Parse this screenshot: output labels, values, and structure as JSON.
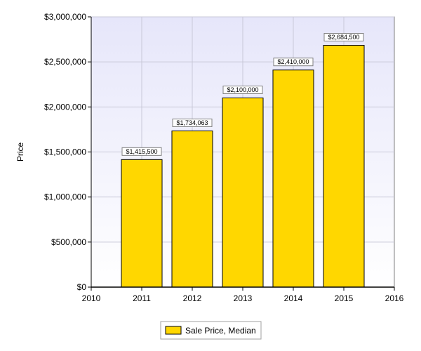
{
  "chart_data": {
    "type": "bar",
    "title": "",
    "xlabel": "",
    "ylabel": "Price",
    "x": [
      2011,
      2012,
      2013,
      2014,
      2015
    ],
    "xlim": [
      2010,
      2016
    ],
    "x_ticks": [
      "2010",
      "2011",
      "2012",
      "2013",
      "2014",
      "2015",
      "2016"
    ],
    "ylim": [
      0,
      3000000
    ],
    "y_ticks": [
      "$0",
      "$500,000",
      "$1,000,000",
      "$1,500,000",
      "$2,000,000",
      "$2,500,000",
      "$3,000,000"
    ],
    "series": [
      {
        "name": "Sale Price, Median",
        "values": [
          1415500,
          1734063,
          2100000,
          2410000,
          2684500
        ],
        "data_labels": [
          "$1,415,500",
          "$1,734,063",
          "$2,100,000",
          "$2,410,000",
          "$2,684,500"
        ]
      }
    ],
    "colors": {
      "bar": "#FFD700",
      "bar_stroke": "#000000",
      "plot_bg_top": "#E6E6FA",
      "plot_bg_bottom": "#FFFFFF",
      "grid": "#C8C8D8"
    },
    "grid": true,
    "legend_position": "bottom-center"
  }
}
